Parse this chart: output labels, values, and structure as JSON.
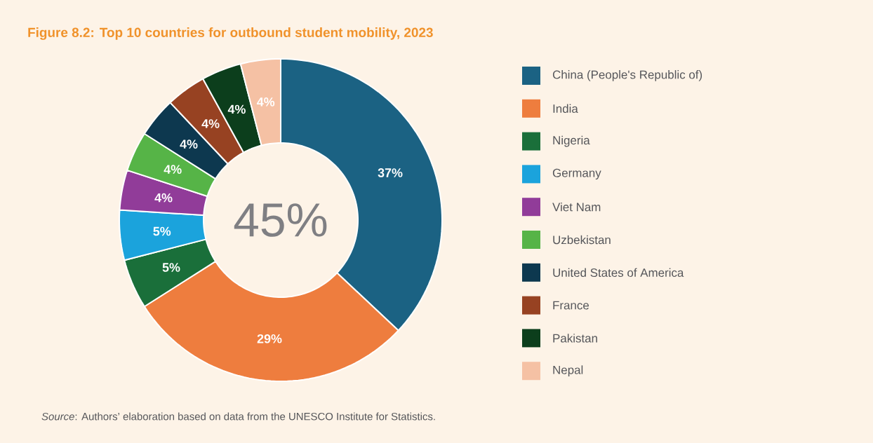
{
  "chart_data": {
    "type": "donut",
    "title": "Figure 8.2: Top 10 countries for outbound student mobility, 2023",
    "categories": [
      "China (People's Republic of)",
      "India",
      "Nigeria",
      "Germany",
      "Viet Nam",
      "Uzbekistan",
      "United States of America",
      "France",
      "Pakistan",
      "Nepal"
    ],
    "values": [
      37,
      29,
      5,
      5,
      4,
      4,
      4,
      4,
      4,
      4
    ],
    "colors": [
      "#1b6283",
      "#ee7d3e",
      "#1a6f3a",
      "#1ba3dc",
      "#913c99",
      "#56b447",
      "#0d384f",
      "#974222",
      "#0c3e1c",
      "#f5c1a4"
    ],
    "value_labels": [
      "37%",
      "29%",
      "5%",
      "5%",
      "4%",
      "4%",
      "4%",
      "4%",
      "4%",
      "4%"
    ],
    "legend": "right",
    "annotations": [
      "45%",
      "*Source*: Authors’ elaboration based on data from the UNESCO Institute for Statistics."
    ]
  }
}
